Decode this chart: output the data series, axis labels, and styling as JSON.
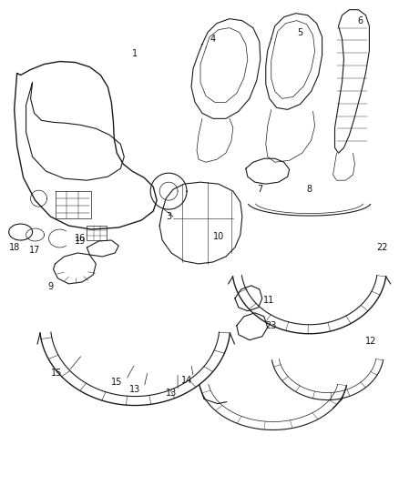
{
  "background_color": "#ffffff",
  "fig_width": 4.38,
  "fig_height": 5.33,
  "dpi": 100,
  "line_color": "#1a1a1a",
  "label_fontsize": 7,
  "label_color": "#111111"
}
